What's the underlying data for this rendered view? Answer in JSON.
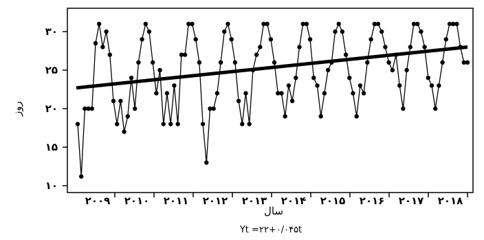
{
  "chart_data": {
    "type": "line",
    "ylabel": "روز",
    "xlabel": "سال",
    "equation": "Yt =۲۲+۰/۰۴۵t",
    "ylim": [
      10,
      32
    ],
    "y_ticks": [
      10,
      15,
      20,
      25,
      30
    ],
    "y_tick_labels": [
      "۱۰",
      "۱۵",
      "۲۰",
      "۲۵",
      "۳۰"
    ],
    "x_ticks": [
      2009,
      2010,
      2011,
      2012,
      2013,
      2014,
      2015,
      2016,
      2017,
      2018
    ],
    "x_tick_labels": [
      "۲۰۰۹",
      "۲۰۱۰",
      "۲۰۱۱",
      "۲۰۱۲",
      "۲۰۱۳",
      "۲۰۱۴",
      "۲۰۱۵",
      "۲۰۱۶",
      "۲۰۱۷",
      "۲۰۱۸"
    ],
    "x_range": [
      2007.9,
      2018.1
    ],
    "series": [
      {
        "kind": "observed",
        "t_start": 2008.0,
        "t_step": 0.0833,
        "values": [
          18,
          11.2,
          20,
          20,
          20,
          28.5,
          31,
          28,
          30,
          27,
          21,
          18,
          21,
          17,
          19,
          24,
          20,
          26,
          29,
          31,
          30,
          26,
          22,
          25,
          18,
          22,
          18,
          23,
          18,
          27,
          27,
          31,
          31,
          29,
          26,
          18,
          13,
          20,
          20,
          22,
          26,
          30,
          31,
          29,
          26,
          21,
          18,
          22,
          18,
          25,
          27,
          28,
          31,
          31,
          29,
          26,
          22,
          22,
          19,
          23,
          21,
          24,
          28,
          31,
          31,
          29,
          24,
          23,
          19,
          22,
          25,
          26,
          30,
          31,
          30,
          27,
          24,
          22,
          19,
          23,
          22,
          26,
          29,
          31,
          31,
          30,
          28,
          26,
          25,
          27,
          23,
          20,
          25,
          28,
          31,
          31,
          30,
          28,
          24,
          23,
          20,
          23,
          26,
          29,
          31,
          31,
          31,
          28,
          26,
          26
        ]
      },
      {
        "kind": "trend",
        "x": [
          2008.0,
          2018.0
        ],
        "y": [
          22.7,
          28.0
        ]
      }
    ],
    "colors": {
      "line": "#000000",
      "frame": "#000000",
      "background": "#ffffff"
    }
  }
}
